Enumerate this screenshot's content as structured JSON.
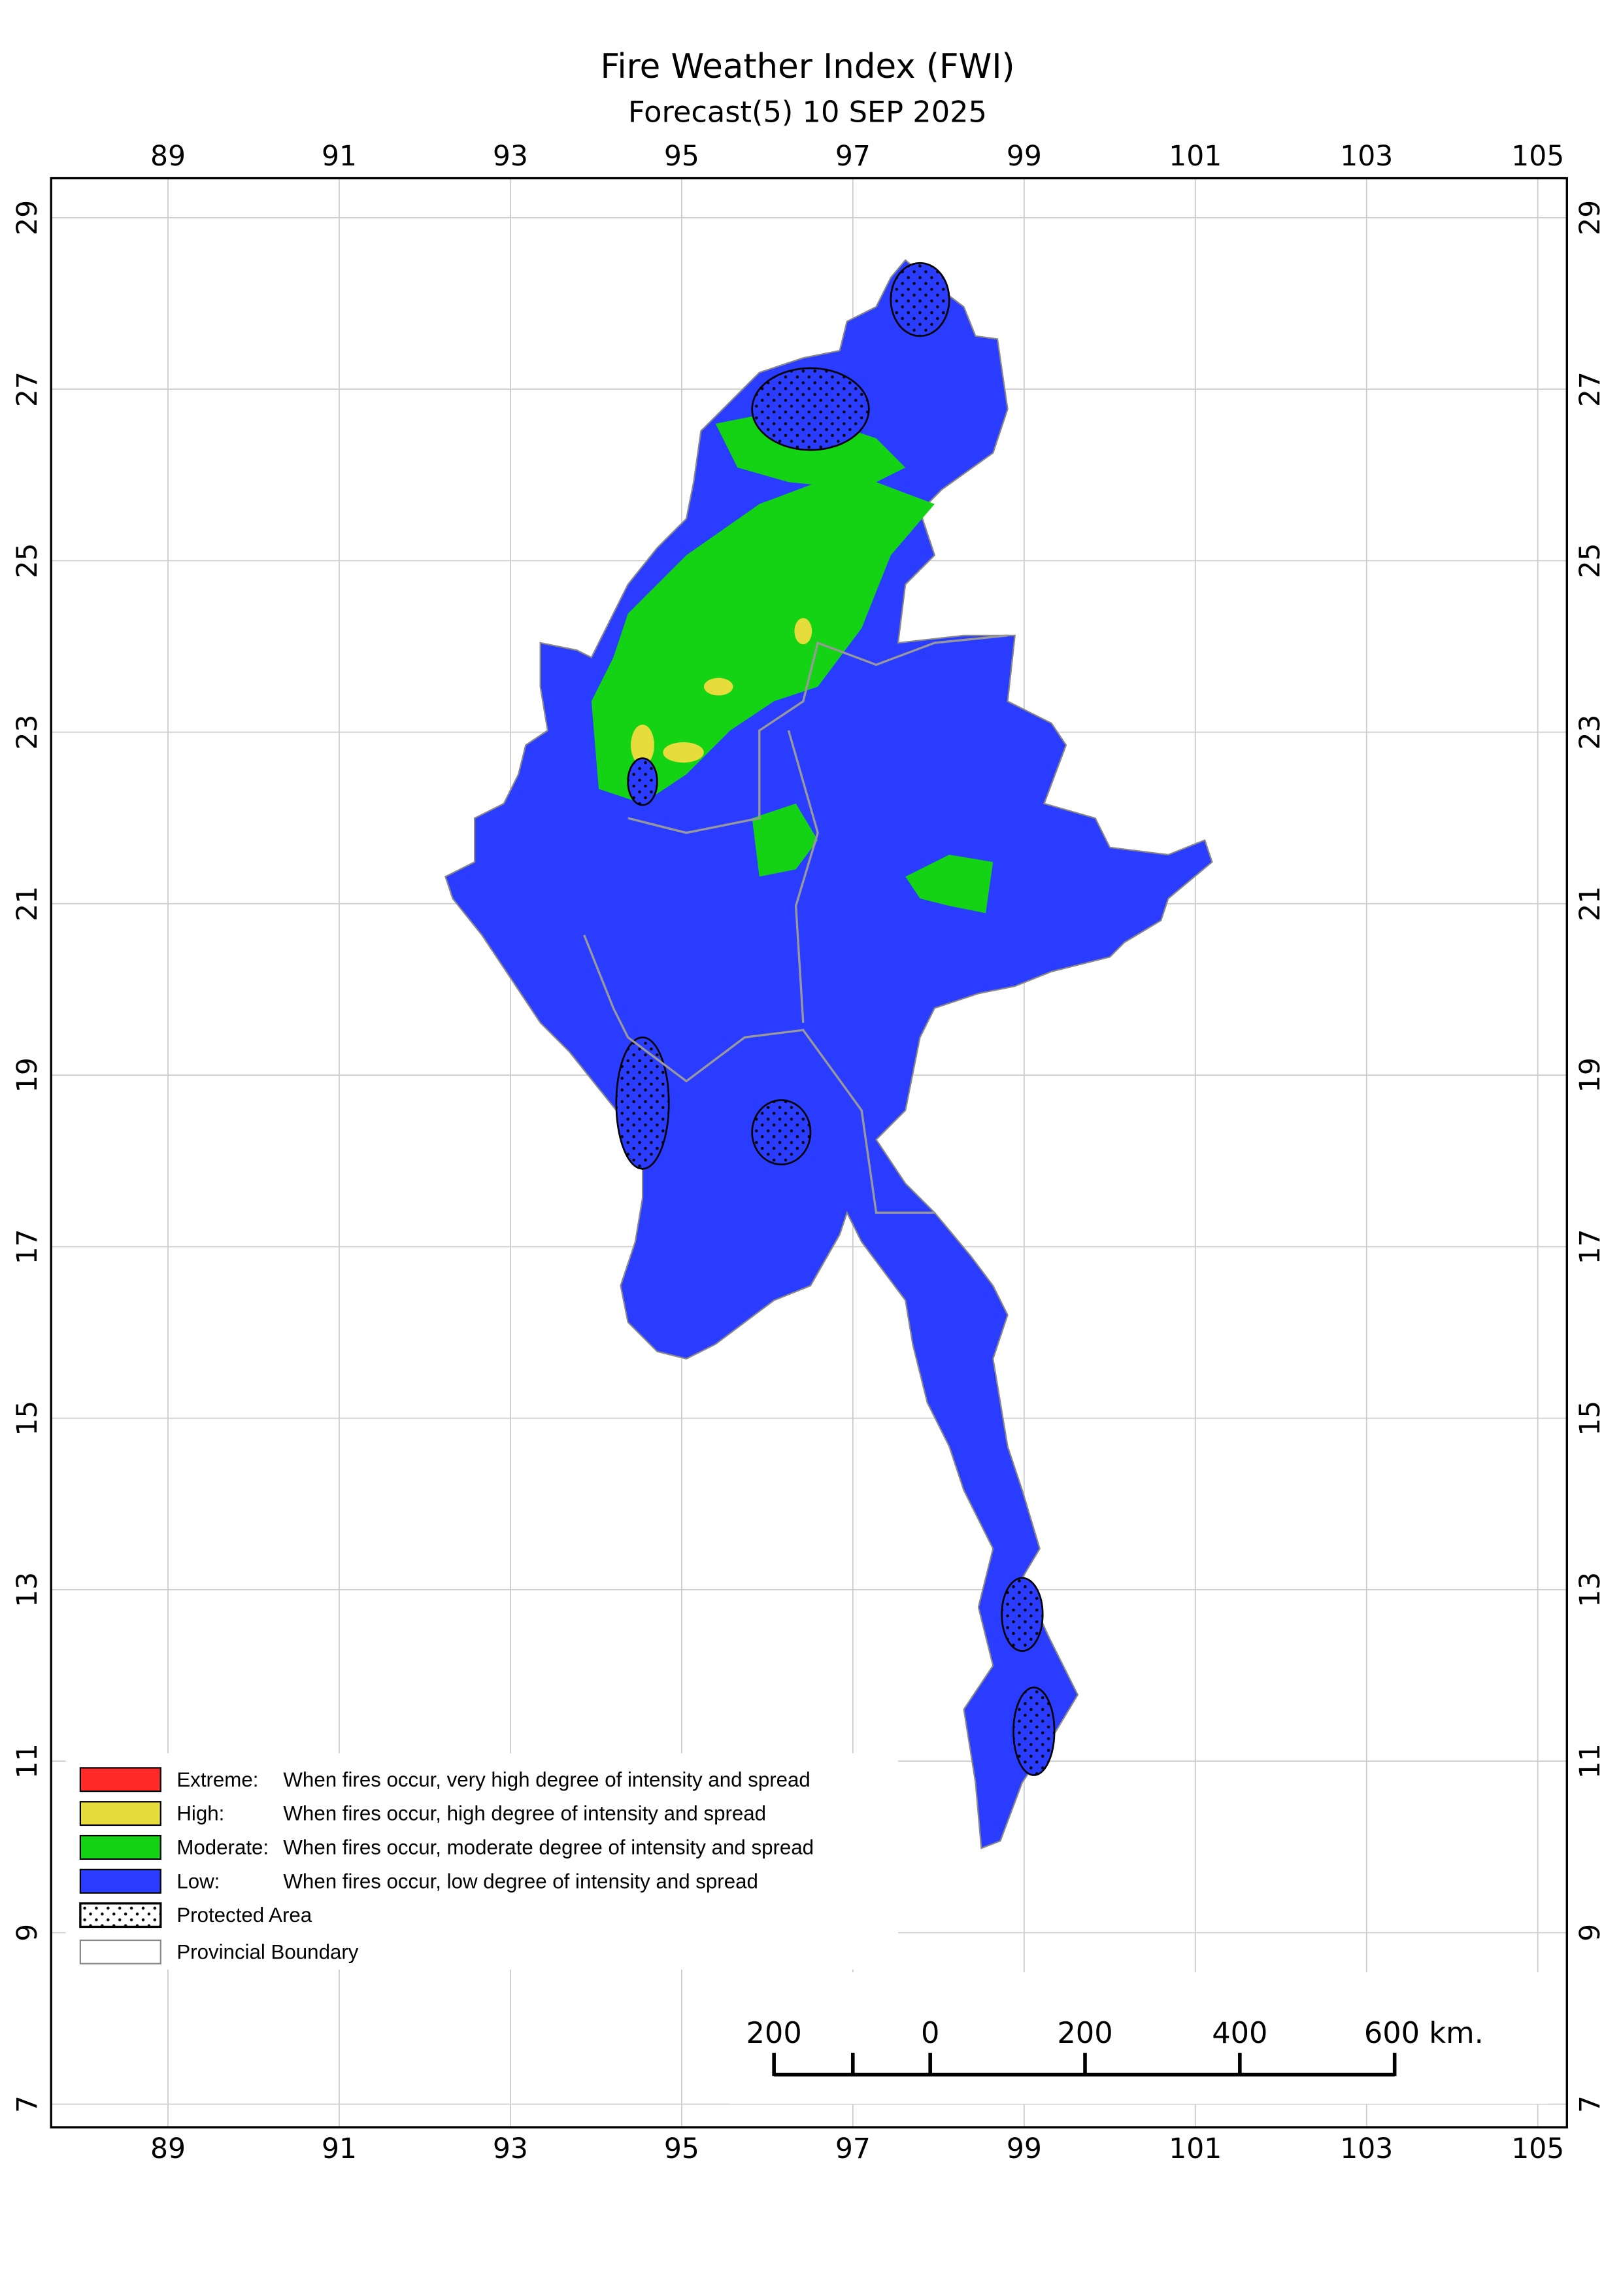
{
  "title": "Fire Weather Index (FWI)",
  "subtitle": "Forecast(5) 10 SEP 2025",
  "map": {
    "xlim": [
      87.635,
      105.34
    ],
    "ylim": [
      6.73,
      29.46
    ],
    "xticks": [
      89,
      91,
      93,
      95,
      97,
      99,
      101,
      103,
      105
    ],
    "yticks": [
      7,
      9,
      11,
      13,
      15,
      17,
      19,
      21,
      23,
      25,
      27,
      29
    ]
  },
  "legend": [
    {
      "label": "Extreme:",
      "description": "When fires occur, very high degree of intensity and spread",
      "color": "#ff2a2a"
    },
    {
      "label": "High:",
      "description": "When fires occur, high degree of intensity and spread",
      "color": "#e6dc3c"
    },
    {
      "label": "Moderate:",
      "description": "When fires occur, moderate degree of intensity and spread",
      "color": "#14d214"
    },
    {
      "label": "Low:",
      "description": "When fires occur, low degree of intensity and spread",
      "color": "#2a3cff"
    },
    {
      "label": "Protected Area"
    },
    {
      "label": "Provincial Boundary"
    }
  ],
  "scale_bar": {
    "labels": [
      "200",
      "0",
      "200",
      "400",
      "600 km."
    ]
  }
}
